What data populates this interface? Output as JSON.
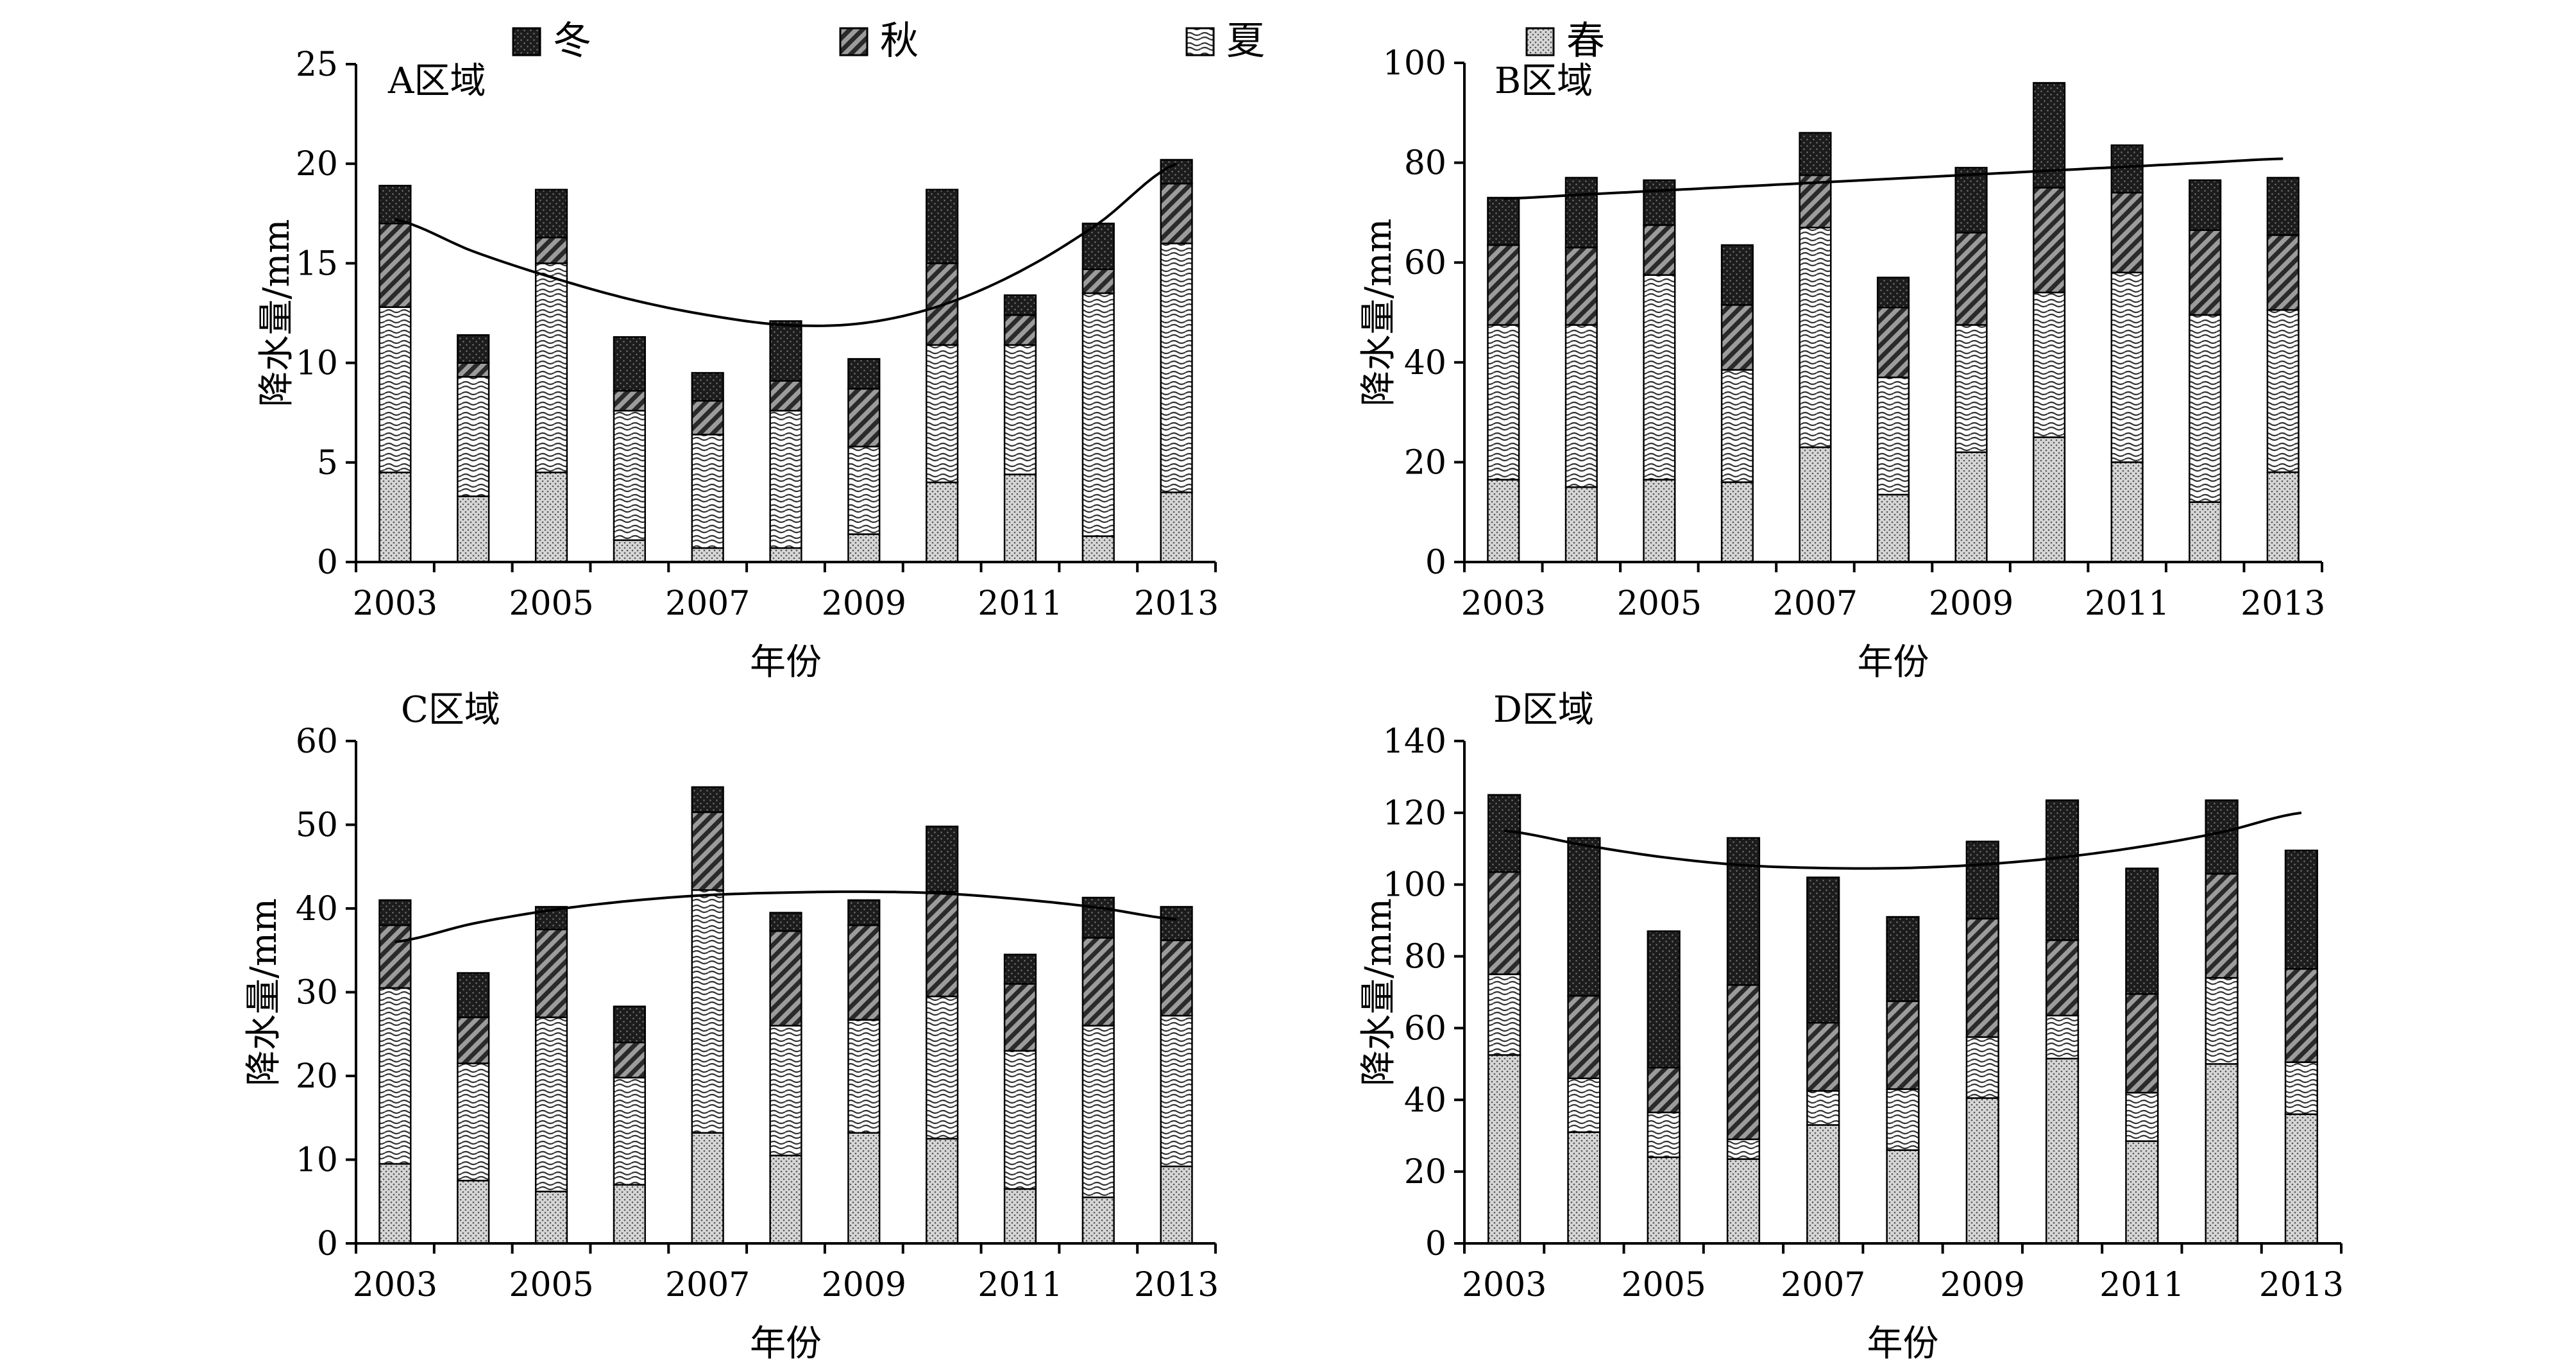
{
  "legend": {
    "items": [
      {
        "name": "冬",
        "pattern": "winter"
      },
      {
        "name": "秋",
        "pattern": "autumn"
      },
      {
        "name": "夏",
        "pattern": "summer"
      },
      {
        "name": "春",
        "pattern": "spring"
      }
    ]
  },
  "colors": {
    "winter": "#1c1c1c",
    "autumn": "#3a3a3a",
    "summer": "#ffffff",
    "spring": "#9a9a9a",
    "axis": "#000000"
  },
  "chart_data": [
    {
      "type": "bar",
      "stacked": true,
      "title": "A区域",
      "xlabel": "年份",
      "ylabel": "降水量/mm",
      "ylim": [
        0,
        25
      ],
      "yticks": [
        0,
        5,
        10,
        15,
        20,
        25
      ],
      "categories": [
        "2003",
        "2004",
        "2005",
        "2006",
        "2007",
        "2008",
        "2009",
        "2010",
        "2011",
        "2012",
        "2013"
      ],
      "xtick_labels": [
        "2003",
        "",
        "2005",
        "",
        "2007",
        "",
        "2009",
        "",
        "2011",
        "",
        "2013"
      ],
      "series": [
        {
          "name": "春",
          "values": [
            4.5,
            3.3,
            4.5,
            1.1,
            0.7,
            0.7,
            1.4,
            4.0,
            4.4,
            1.3,
            3.5
          ]
        },
        {
          "name": "夏",
          "values": [
            8.3,
            6.0,
            10.5,
            6.5,
            5.7,
            6.9,
            4.4,
            6.9,
            6.5,
            12.2,
            12.5
          ]
        },
        {
          "name": "秋",
          "values": [
            4.2,
            0.7,
            1.3,
            1.0,
            1.7,
            1.5,
            2.9,
            4.1,
            1.5,
            1.2,
            3.0
          ]
        },
        {
          "name": "冬",
          "values": [
            1.9,
            1.4,
            2.4,
            2.7,
            1.4,
            3.0,
            1.5,
            3.7,
            1.0,
            2.3,
            1.2
          ]
        }
      ],
      "trend": [
        17.2,
        15.6,
        14.3,
        13.2,
        12.4,
        11.9,
        12.0,
        12.9,
        14.6,
        17.0,
        20.0
      ]
    },
    {
      "type": "bar",
      "stacked": true,
      "title": "B区域",
      "xlabel": "年份",
      "ylabel": "降水量/mm",
      "ylim": [
        0,
        100
      ],
      "yticks": [
        0,
        20,
        40,
        60,
        80,
        100
      ],
      "categories": [
        "2003",
        "2004",
        "2005",
        "2006",
        "2007",
        "2008",
        "2009",
        "2010",
        "2011",
        "2012",
        "2013"
      ],
      "xtick_labels": [
        "2003",
        "",
        "2005",
        "",
        "2007",
        "",
        "2009",
        "",
        "2011",
        "",
        "2013"
      ],
      "series": [
        {
          "name": "春",
          "values": [
            16.5,
            15.0,
            16.5,
            16.0,
            23.0,
            13.5,
            22.0,
            25.0,
            20.0,
            12.0,
            18.0
          ]
        },
        {
          "name": "夏",
          "values": [
            31.0,
            32.5,
            41.0,
            22.5,
            44.0,
            23.5,
            25.5,
            29.0,
            38.0,
            37.5,
            32.5
          ]
        },
        {
          "name": "秋",
          "values": [
            16.0,
            15.5,
            10.0,
            13.0,
            10.5,
            14.0,
            18.5,
            21.0,
            16.0,
            17.0,
            15.0
          ]
        },
        {
          "name": "冬",
          "values": [
            9.5,
            14.0,
            9.0,
            12.0,
            8.5,
            6.0,
            13.0,
            21.0,
            9.5,
            10.0,
            11.5
          ]
        }
      ],
      "trend": [
        72.8,
        73.6,
        74.4,
        75.2,
        76.0,
        76.8,
        77.6,
        78.4,
        79.2,
        80.0,
        80.8
      ]
    },
    {
      "type": "bar",
      "stacked": true,
      "title": "C区域",
      "xlabel": "年份",
      "ylabel": "降水量/mm",
      "ylim": [
        0,
        60
      ],
      "yticks": [
        0,
        10,
        20,
        30,
        40,
        50,
        60
      ],
      "categories": [
        "2003",
        "2004",
        "2005",
        "2006",
        "2007",
        "2008",
        "2009",
        "2010",
        "2011",
        "2012",
        "2013"
      ],
      "xtick_labels": [
        "2003",
        "",
        "2005",
        "",
        "2007",
        "",
        "2009",
        "",
        "2011",
        "",
        "2013"
      ],
      "series": [
        {
          "name": "春",
          "values": [
            9.5,
            7.5,
            6.2,
            7.0,
            13.2,
            10.5,
            13.2,
            12.5,
            6.5,
            5.5,
            9.2
          ]
        },
        {
          "name": "夏",
          "values": [
            21.0,
            14.0,
            20.8,
            12.8,
            29.0,
            15.5,
            13.5,
            17.0,
            16.5,
            20.5,
            18.0
          ]
        },
        {
          "name": "秋",
          "values": [
            7.5,
            5.5,
            10.5,
            4.2,
            9.3,
            11.3,
            11.3,
            12.5,
            8.0,
            10.5,
            9.0
          ]
        },
        {
          "name": "冬",
          "values": [
            3.0,
            5.3,
            2.7,
            4.3,
            3.0,
            2.2,
            3.0,
            7.8,
            3.5,
            4.8,
            4.0
          ]
        }
      ],
      "trend": [
        36.0,
        38.2,
        39.8,
        40.9,
        41.6,
        41.9,
        42.0,
        41.8,
        41.1,
        40.1,
        38.7
      ]
    },
    {
      "type": "bar",
      "stacked": true,
      "title": "D区域",
      "xlabel": "年份",
      "ylabel": "降水量/mm",
      "ylim": [
        0,
        140
      ],
      "yticks": [
        0,
        20,
        40,
        60,
        80,
        100,
        120,
        140
      ],
      "categories": [
        "2003",
        "2004",
        "2005",
        "2006",
        "2007",
        "2008",
        "2009",
        "2010",
        "2011",
        "2012",
        "2013"
      ],
      "xtick_labels": [
        "2003",
        "",
        "2005",
        "",
        "2007",
        "",
        "2009",
        "",
        "2011",
        "",
        "2013"
      ],
      "series": [
        {
          "name": "春",
          "values": [
            52.5,
            31.0,
            24.0,
            23.5,
            33.0,
            26.0,
            40.5,
            51.5,
            28.5,
            50.0,
            36.0
          ]
        },
        {
          "name": "夏",
          "values": [
            22.5,
            15.0,
            12.5,
            5.5,
            9.5,
            17.0,
            17.0,
            12.0,
            13.5,
            24.0,
            14.5
          ]
        },
        {
          "name": "秋",
          "values": [
            28.5,
            23.0,
            12.5,
            43.0,
            19.0,
            24.5,
            33.0,
            21.0,
            27.5,
            29.0,
            26.0
          ]
        },
        {
          "name": "冬",
          "values": [
            21.5,
            44.0,
            38.0,
            41.0,
            40.5,
            23.5,
            21.5,
            39.0,
            35.0,
            20.5,
            33.0
          ]
        }
      ],
      "trend": [
        115.0,
        111.0,
        107.6,
        105.4,
        104.6,
        104.6,
        105.6,
        107.6,
        110.6,
        114.6,
        120.0
      ]
    }
  ]
}
